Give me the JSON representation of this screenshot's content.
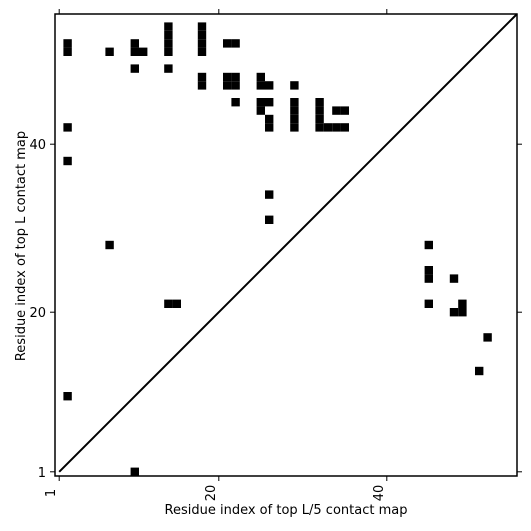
{
  "chart_data": {
    "type": "scatter",
    "title": "",
    "xlabel": "Residue index of top L/5 contact map",
    "ylabel": "Residue index of top L contact map",
    "xlim": [
      0.5,
      55.5
    ],
    "ylim": [
      0.5,
      55.5
    ],
    "xticks": [
      1,
      20,
      40
    ],
    "yticks": [
      1,
      20,
      40
    ],
    "xtick_labels": [
      "1",
      "20",
      "40"
    ],
    "ytick_labels": [
      "1",
      "20",
      "40"
    ],
    "diagonal": true,
    "grid": false,
    "lower_triangle_label": "top L/5 contact map",
    "upper_triangle_label": "top L contact map",
    "points": [
      [
        10,
        1
      ],
      [
        2,
        10
      ],
      [
        14,
        21
      ],
      [
        15,
        21
      ],
      [
        7,
        28
      ],
      [
        26,
        31
      ],
      [
        26,
        34
      ],
      [
        2,
        38
      ],
      [
        2,
        42
      ],
      [
        26,
        42
      ],
      [
        29,
        42
      ],
      [
        32,
        42
      ],
      [
        33,
        42
      ],
      [
        34,
        42
      ],
      [
        35,
        42
      ],
      [
        26,
        43
      ],
      [
        29,
        43
      ],
      [
        32,
        43
      ],
      [
        25,
        44
      ],
      [
        29,
        44
      ],
      [
        32,
        44
      ],
      [
        34,
        44
      ],
      [
        35,
        44
      ],
      [
        22,
        45
      ],
      [
        25,
        45
      ],
      [
        26,
        45
      ],
      [
        29,
        45
      ],
      [
        32,
        45
      ],
      [
        18,
        47
      ],
      [
        21,
        47
      ],
      [
        22,
        47
      ],
      [
        25,
        47
      ],
      [
        26,
        47
      ],
      [
        29,
        47
      ],
      [
        18,
        48
      ],
      [
        21,
        48
      ],
      [
        22,
        48
      ],
      [
        25,
        48
      ],
      [
        10,
        49
      ],
      [
        14,
        49
      ],
      [
        2,
        51
      ],
      [
        7,
        51
      ],
      [
        10,
        51
      ],
      [
        11,
        51
      ],
      [
        14,
        51
      ],
      [
        18,
        51
      ],
      [
        2,
        52
      ],
      [
        10,
        52
      ],
      [
        14,
        52
      ],
      [
        18,
        52
      ],
      [
        21,
        52
      ],
      [
        22,
        52
      ],
      [
        14,
        53
      ],
      [
        18,
        53
      ],
      [
        14,
        54
      ],
      [
        18,
        54
      ],
      [
        45,
        28
      ],
      [
        45,
        24
      ],
      [
        45,
        25
      ],
      [
        48,
        24
      ],
      [
        45,
        21
      ],
      [
        49,
        21
      ],
      [
        48,
        20
      ],
      [
        49,
        20
      ],
      [
        52,
        17
      ],
      [
        51,
        13
      ]
    ]
  }
}
